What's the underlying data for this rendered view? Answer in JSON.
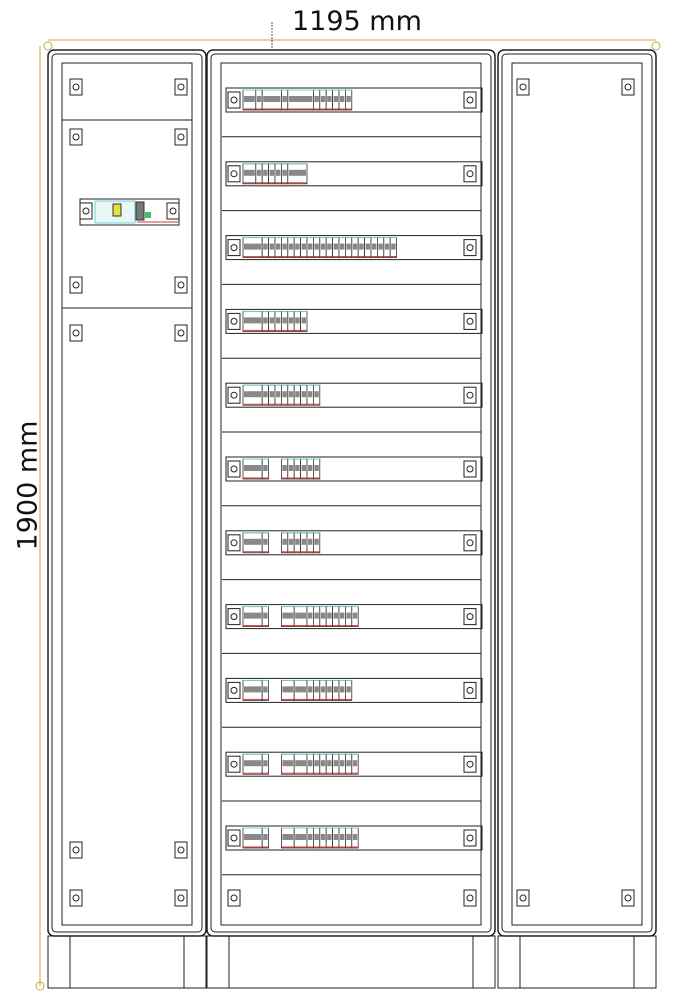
{
  "dimensions": {
    "width_label": "1195 mm",
    "height_label": "1900 mm"
  },
  "colors": {
    "dimension_line": "#c8a64a",
    "outline": "#222222",
    "wiring": "#d43a3a",
    "accent_green": "#3fbf6a",
    "accent_cyan": "#6fd3d8",
    "accent_yellow": "#e4e23a"
  },
  "cabinets": [
    {
      "id": "left",
      "type": "side panel with control module"
    },
    {
      "id": "center",
      "type": "modular distribution rows",
      "rows": [
        {
          "modules": [
            2,
            1,
            3,
            1,
            4,
            1,
            1,
            1,
            1,
            1,
            1
          ]
        },
        {
          "modules": [
            2,
            1,
            1,
            1,
            1,
            1,
            3
          ]
        },
        {
          "modules": [
            3,
            1,
            1,
            1,
            1,
            1,
            1,
            1,
            1,
            1,
            1,
            1,
            1,
            1,
            1,
            1,
            1,
            1,
            1,
            1,
            1,
            1
          ]
        },
        {
          "modules": [
            3,
            1,
            1,
            1,
            1,
            1,
            1,
            1
          ]
        },
        {
          "modules": [
            3,
            1,
            1,
            1,
            1,
            1,
            1,
            1,
            1,
            1
          ]
        },
        {
          "modules": [
            3,
            1,
            0,
            1,
            1,
            1,
            1,
            1,
            1
          ]
        },
        {
          "modules": [
            3,
            1,
            0,
            1,
            1,
            1,
            1,
            1,
            1
          ]
        },
        {
          "modules": [
            3,
            1,
            0,
            2,
            2,
            1,
            1,
            1,
            1,
            1,
            1,
            1,
            1
          ]
        },
        {
          "modules": [
            3,
            1,
            0,
            2,
            2,
            1,
            1,
            1,
            1,
            1,
            1,
            1
          ]
        },
        {
          "modules": [
            3,
            1,
            0,
            2,
            2,
            1,
            1,
            1,
            1,
            1,
            1,
            1,
            1
          ]
        },
        {
          "modules": [
            3,
            1,
            0,
            2,
            2,
            1,
            1,
            1,
            1,
            1,
            1,
            1,
            1
          ]
        }
      ]
    },
    {
      "id": "right",
      "type": "blank side panel"
    }
  ]
}
